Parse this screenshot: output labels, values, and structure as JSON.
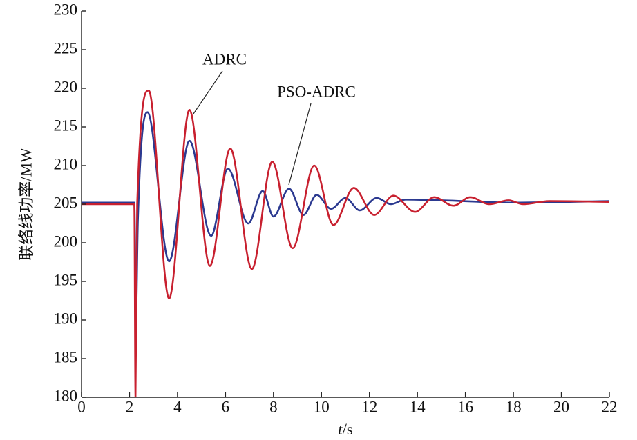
{
  "chart_data": {
    "type": "line",
    "xlabel_italic": "t",
    "xlabel": "/s",
    "ylabel": "联络线功率/MW",
    "xlim": [
      0,
      22
    ],
    "xticks": [
      0,
      2,
      4,
      6,
      8,
      10,
      12,
      14,
      16,
      18,
      20,
      22
    ],
    "ylim": [
      180,
      230
    ],
    "yticks": [
      180,
      185,
      190,
      195,
      200,
      205,
      210,
      215,
      220,
      225,
      230
    ],
    "series": [
      {
        "name": "PSO-ADRC",
        "color": "#2b3990",
        "x": [
          0,
          2.2,
          2.27,
          2.35,
          2.75,
          3.65,
          4.5,
          5.4,
          6.1,
          6.95,
          7.55,
          8.0,
          8.65,
          9.25,
          9.8,
          10.4,
          11.0,
          11.6,
          12.3,
          12.9,
          13.5,
          15,
          18,
          22
        ],
        "values": [
          205.2,
          205.2,
          190.5,
          203,
          216.9,
          197.6,
          213.2,
          200.9,
          209.6,
          202.5,
          206.7,
          203.4,
          207,
          203.6,
          206.2,
          204.4,
          205.8,
          204.2,
          205.8,
          205,
          205.6,
          205.5,
          205.2,
          205.4
        ]
      },
      {
        "name": "ADRC",
        "color": "#c8202f",
        "x": [
          0,
          2.2,
          2.25,
          2.32,
          2.8,
          3.65,
          4.5,
          5.35,
          6.2,
          7.1,
          7.95,
          8.8,
          9.7,
          10.5,
          11.35,
          12.2,
          13.0,
          13.9,
          14.7,
          15.5,
          16.2,
          17.0,
          17.8,
          18.4,
          19.5,
          22
        ],
        "values": [
          205,
          205,
          180,
          205,
          219.7,
          192.8,
          217.2,
          197,
          212.2,
          196.6,
          210.5,
          199.3,
          210,
          202.3,
          207.1,
          203.6,
          206.1,
          204,
          205.9,
          204.8,
          205.9,
          205,
          205.5,
          205,
          205.4,
          205.3
        ]
      }
    ]
  }
}
